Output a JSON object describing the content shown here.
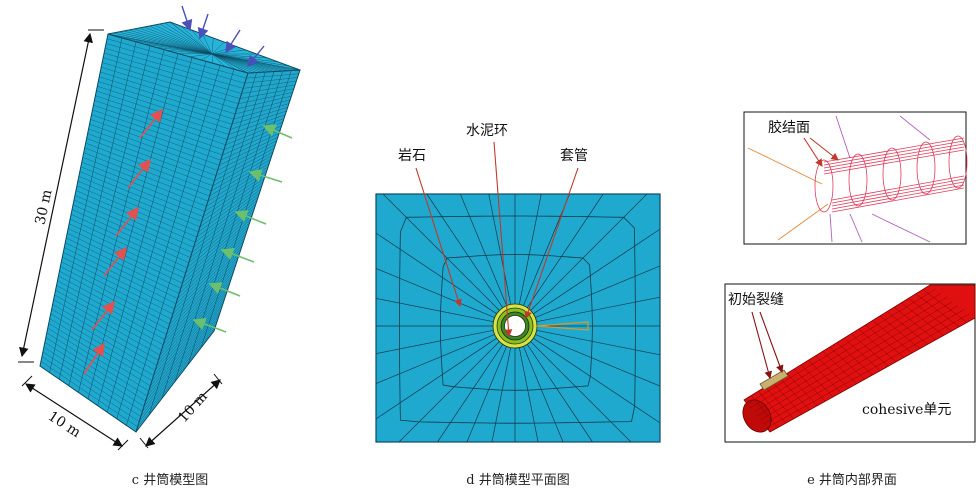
{
  "panel_c": {
    "caption": "c  井筒模型图",
    "height_label": "30 m",
    "width_label_left": "10 m",
    "width_label_right": "10 m"
  },
  "panel_d": {
    "caption": "d  井筒模型平面图",
    "label_rock": "岩石",
    "label_cement": "水泥环",
    "label_casing": "套管"
  },
  "panel_e": {
    "caption": "e  井筒内部界面",
    "label_interface": "胶结面",
    "label_crack": "初始裂缝",
    "label_cohesive": "cohesive单元"
  },
  "colors": {
    "mesh_fill": "#1fa9cf",
    "mesh_line": "#0d4a63",
    "pipe_red": "#e01010",
    "arrow_red": "#e35050",
    "arrow_green": "#6cc06c",
    "arrow_blue": "#4b4fb8"
  }
}
